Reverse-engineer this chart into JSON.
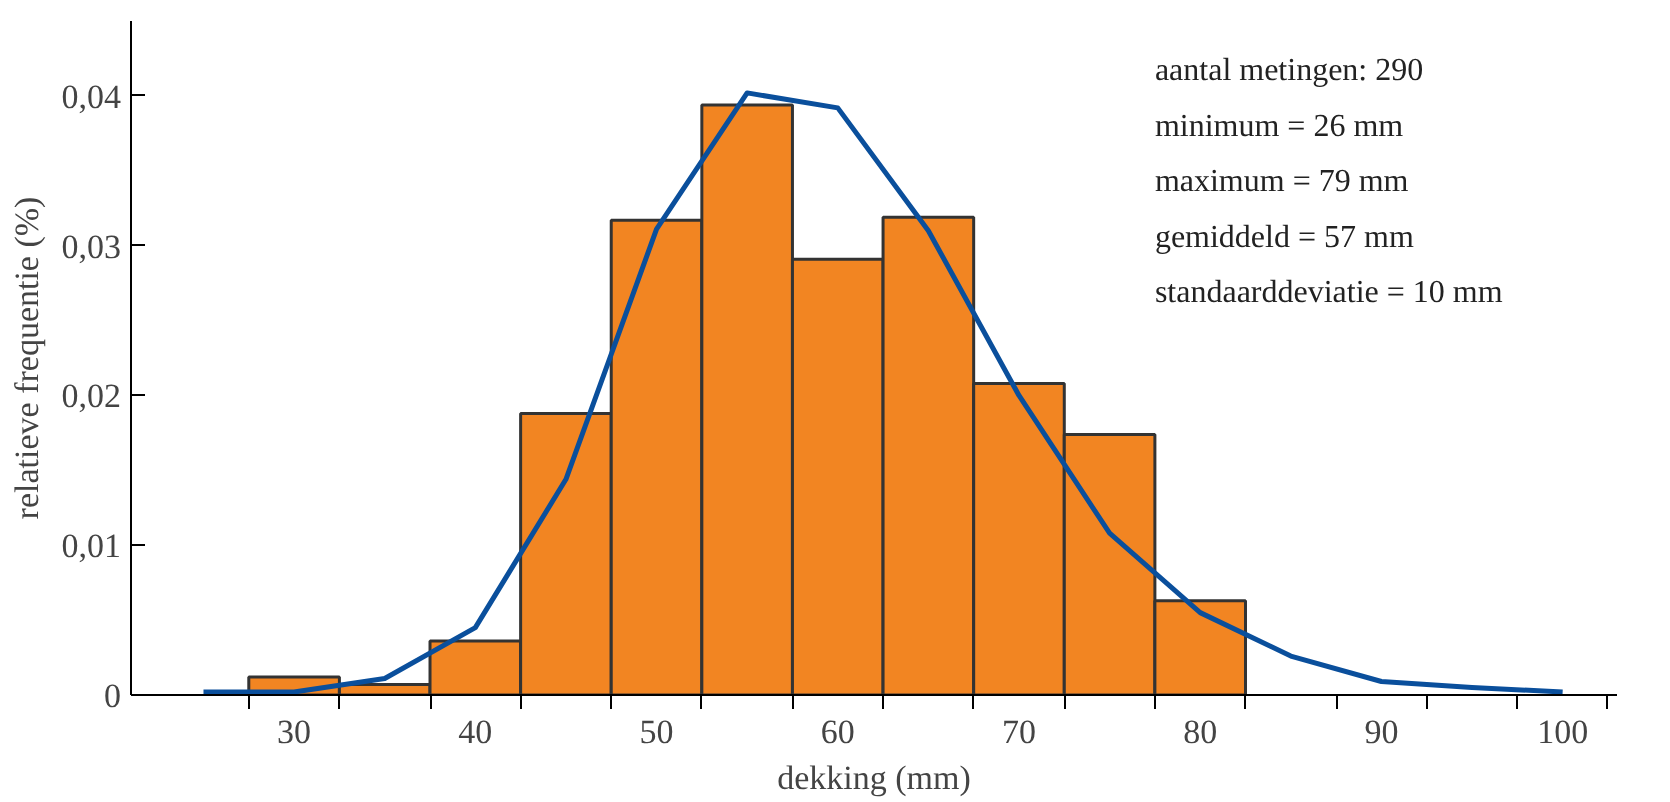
{
  "chart_data": {
    "type": "histogram",
    "xlabel": "dekking (mm)",
    "ylabel": "relatieve frequentie (%)",
    "bins": [
      27.5,
      32.5,
      37.5,
      42.5,
      47.5,
      52.5,
      57.5,
      62.5,
      67.5,
      72.5,
      77.5,
      82.5
    ],
    "values": [
      0.0012,
      0.0007,
      0.0036,
      0.0188,
      0.0317,
      0.0394,
      0.0291,
      0.0319,
      0.0208,
      0.0174,
      0.0063
    ],
    "color": "#f28522",
    "series": [
      {
        "type": "line",
        "color": "#0a4f9c",
        "x": [
          25,
          30,
          35,
          40,
          45,
          50,
          55,
          60,
          65,
          70,
          75,
          80,
          85,
          90,
          95,
          100
        ],
        "values": [
          0.0002,
          0.0002,
          0.0011,
          0.0045,
          0.0144,
          0.0311,
          0.0402,
          0.0392,
          0.031,
          0.02,
          0.0108,
          0.0055,
          0.0026,
          0.0009,
          0.0005,
          0.0002
        ]
      }
    ],
    "xlim": [
      21,
      103
    ],
    "ylim": [
      0,
      0.045
    ],
    "xticks": [
      {
        "value": 27.5,
        "label": null
      },
      30,
      {
        "value": 32.5,
        "label": null
      },
      {
        "value": 37.5,
        "label": null
      },
      40,
      {
        "value": 42.5,
        "label": null
      },
      {
        "value": 47.5,
        "label": null
      },
      50,
      {
        "value": 52.5,
        "label": null
      },
      {
        "value": 57.5,
        "label": null
      },
      60,
      {
        "value": 62.5,
        "label": null
      },
      {
        "value": 67.5,
        "label": null
      },
      70,
      {
        "value": 72.5,
        "label": null
      },
      {
        "value": 77.5,
        "label": null
      },
      80,
      {
        "value": 82.5,
        "label": null
      },
      {
        "value": 87.5,
        "label": null
      },
      90,
      {
        "value": 92.5,
        "label": null
      },
      {
        "value": 97.5,
        "label": null
      },
      100,
      {
        "value": 102.5,
        "label": null
      }
    ],
    "yticks": [
      0,
      {
        "value": 0.01,
        "label": "0,01"
      },
      {
        "value": 0.02,
        "label": "0,02"
      },
      {
        "value": 0.03,
        "label": "0,03"
      },
      {
        "value": 0.04,
        "label": "0,04"
      }
    ],
    "grid": false,
    "annotations": [
      "aantal metingen: 290",
      "minimum = 26 mm",
      "maximum = 79 mm",
      "gemiddeld = 57 mm",
      "standaarddeviatie = 10 mm"
    ]
  }
}
